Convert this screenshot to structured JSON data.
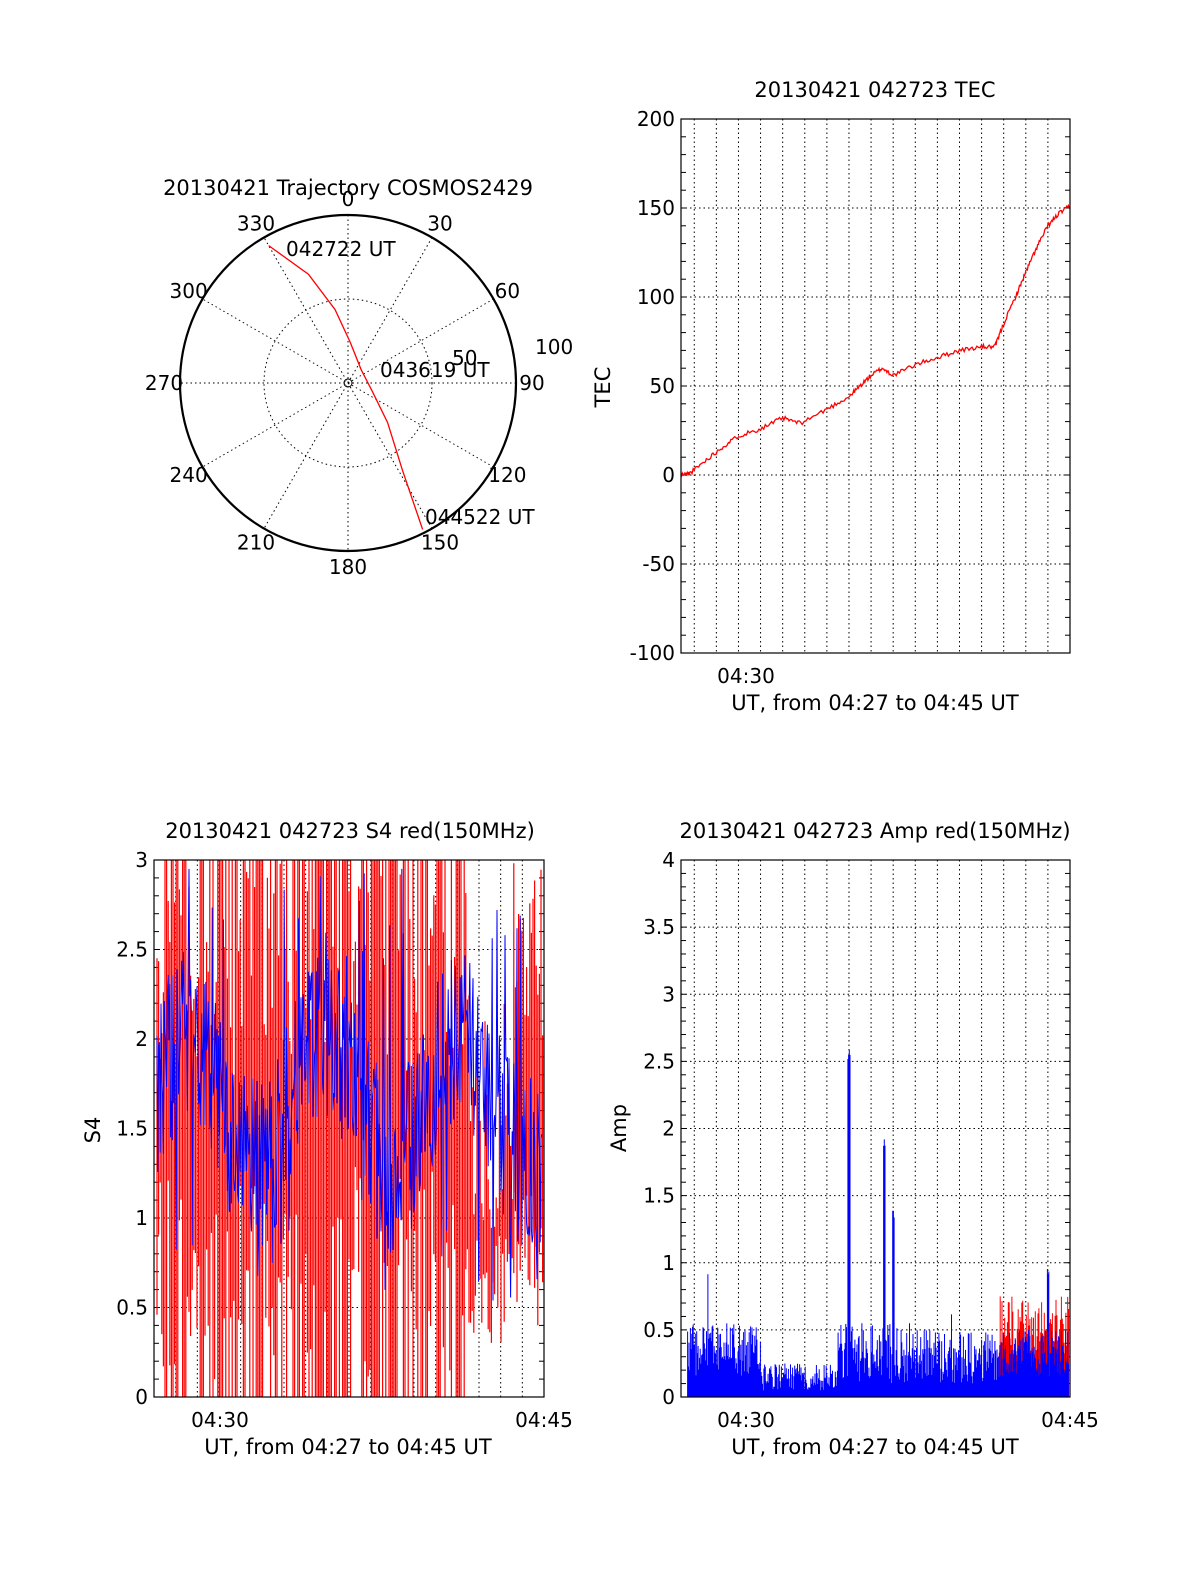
{
  "colors": {
    "red": "#ff0000",
    "blue": "#0000ff",
    "axis": "#000000",
    "background": "#ffffff"
  },
  "chart_data": [
    {
      "type": "polar",
      "title": "20130421 Trajectory COSMOS2429",
      "azimuth_labels": [
        "0",
        "30",
        "60",
        "90",
        "120",
        "150",
        "180",
        "210",
        "240",
        "270",
        "300",
        "330"
      ],
      "radial_labels": [
        "50",
        "100"
      ],
      "trajectory": {
        "color": "#ff0000",
        "points": [
          {
            "azimuth": 330,
            "zenith": 85
          },
          {
            "azimuth": 340,
            "zenith": 62
          },
          {
            "azimuth": 350,
            "zenith": 40
          },
          {
            "azimuth": 3,
            "zenith": 22
          },
          {
            "azimuth": 45,
            "zenith": 10
          },
          {
            "azimuth": 110,
            "zenith": 14
          },
          {
            "azimuth": 135,
            "zenith": 30
          },
          {
            "azimuth": 148,
            "zenith": 55
          },
          {
            "azimuth": 153,
            "zenith": 88
          }
        ]
      },
      "annotations": [
        "042722 UT",
        "043619 UT",
        "044522 UT"
      ]
    },
    {
      "type": "line",
      "title": "20130421 042723 TEC",
      "xlabel": "UT, from 04:27 to 04:45 UT",
      "ylabel": "TEC",
      "xlim": [
        27.4,
        45
      ],
      "ylim": [
        -100,
        200
      ],
      "yticks": [
        "-100",
        "-50",
        "0",
        "50",
        "100",
        "150",
        "200"
      ],
      "xticks": [
        "04:30"
      ],
      "series": [
        {
          "color": "#ff0000",
          "x": [
            27.4,
            27.8,
            28.5,
            29.2,
            30.0,
            31.0,
            32.0,
            32.8,
            34.0,
            35.0,
            35.5,
            36.0,
            36.5,
            37.0,
            38.0,
            39.0,
            40.0,
            41.0,
            41.6,
            42.0,
            42.6,
            43.0,
            43.5,
            44.0,
            44.5,
            45.0
          ],
          "y": [
            0,
            1,
            8,
            15,
            22,
            26,
            32,
            29,
            37,
            44,
            50,
            56,
            60,
            56,
            62,
            66,
            70,
            72,
            72,
            85,
            102,
            114,
            128,
            140,
            147,
            151
          ]
        }
      ]
    },
    {
      "type": "line",
      "title": "20130421 042723 S4 red(150MHz)",
      "xlabel": "UT, from 04:27 to 04:45 UT",
      "ylabel": "S4",
      "xlim": [
        27,
        45
      ],
      "ylim": [
        0,
        3
      ],
      "yticks": [
        "0",
        "0.5",
        "1",
        "1.5",
        "2",
        "2.5",
        "3"
      ],
      "xticks": [
        "04:30",
        "04:45"
      ],
      "series": [
        {
          "color": "#ff0000",
          "note": "dense oscillation between 0 and 3, clearing after 04:41"
        },
        {
          "color": "#0000ff",
          "note": "noisy band around 1.5 to 2"
        }
      ]
    },
    {
      "type": "line",
      "title": "20130421 042723 Amp red(150MHz)",
      "xlabel": "UT, from 04:27 to 04:45 UT",
      "ylabel": "Amp",
      "xlim": [
        27.4,
        45
      ],
      "ylim": [
        0,
        4
      ],
      "yticks": [
        "0",
        "0.5",
        "1",
        "1.5",
        "2",
        "2.5",
        "3",
        "3.5",
        "4"
      ],
      "xticks": [
        "04:30",
        "04:45"
      ],
      "series": [
        {
          "color": "#0000ff",
          "peaks": [
            {
              "x": 35.0,
              "y": 2.6
            },
            {
              "x": 36.6,
              "y": 1.95
            },
            {
              "x": 37.0,
              "y": 1.4
            },
            {
              "x": 44.0,
              "y": 1.0
            }
          ]
        },
        {
          "color": "#ff0000",
          "note": "hidden beneath blue until ~04:42, then up to about 0.7"
        }
      ]
    }
  ]
}
